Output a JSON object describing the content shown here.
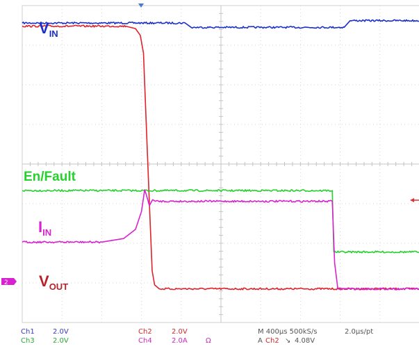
{
  "chart_data": {
    "type": "line",
    "x_range": [
      0,
      10
    ],
    "y_range": [
      0,
      8
    ],
    "grid": true,
    "series": [
      {
        "name": "VIN",
        "label_main": "V",
        "label_sub": "IN",
        "color": "#1a2fc9",
        "points": [
          [
            0,
            7.56
          ],
          [
            4.1,
            7.56
          ],
          [
            4.25,
            7.45
          ],
          [
            8.1,
            7.45
          ],
          [
            8.25,
            7.62
          ],
          [
            10,
            7.62
          ]
        ]
      },
      {
        "name": "VOUT",
        "label_main": "V",
        "label_sub": "OUT",
        "color": "#e0202a",
        "points": [
          [
            0,
            7.48
          ],
          [
            2.6,
            7.48
          ],
          [
            2.85,
            7.42
          ],
          [
            2.97,
            7.25
          ],
          [
            3.05,
            6.8
          ],
          [
            3.12,
            5.0
          ],
          [
            3.2,
            3.0
          ],
          [
            3.27,
            1.3
          ],
          [
            3.33,
            0.95
          ],
          [
            3.45,
            0.85
          ],
          [
            10,
            0.85
          ]
        ]
      },
      {
        "name": "En/Fault",
        "label_main": "En/Fault",
        "label_sub": "",
        "color": "#25d12b",
        "points": [
          [
            0,
            3.33
          ],
          [
            7.8,
            3.33
          ],
          [
            7.84,
            1.78
          ],
          [
            10,
            1.78
          ]
        ]
      },
      {
        "name": "IIN",
        "label_main": "I",
        "label_sub": "IN",
        "color": "#d722cf",
        "points": [
          [
            0,
            2.03
          ],
          [
            2.0,
            2.03
          ],
          [
            2.55,
            2.12
          ],
          [
            2.85,
            2.35
          ],
          [
            3.0,
            2.8
          ],
          [
            3.08,
            3.35
          ],
          [
            3.13,
            3.2
          ],
          [
            3.2,
            2.95
          ],
          [
            3.28,
            3.1
          ],
          [
            3.35,
            3.06
          ],
          [
            7.8,
            3.06
          ],
          [
            7.86,
            1.5
          ],
          [
            7.94,
            0.85
          ],
          [
            10,
            0.85
          ]
        ]
      }
    ]
  },
  "left_marker": "2",
  "readout": {
    "ch1_name": "Ch1",
    "ch1_scale": "2.0V",
    "ch3_name": "Ch3",
    "ch3_scale": "2.0V",
    "ch2_name": "Ch2",
    "ch2_scale": "2.0V",
    "ch4_name": "Ch4",
    "ch4_scale": "2.0A",
    "ch4_unit": "Ω",
    "timebase": "M 400μs 500kS/s",
    "point_rate": "2.0μs/pt",
    "trigger_prefix": "A",
    "trigger_ch": "Ch2",
    "trigger_slope": "↘",
    "trigger_level": "4.08V"
  }
}
